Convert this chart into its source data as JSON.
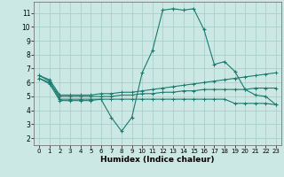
{
  "xlabel": "Humidex (Indice chaleur)",
  "bg_color": "#cce8e4",
  "grid_color": "#aacfcb",
  "line_color": "#1a7a6e",
  "xlim": [
    -0.5,
    23.5
  ],
  "ylim": [
    1.5,
    11.8
  ],
  "xticks": [
    0,
    1,
    2,
    3,
    4,
    5,
    6,
    7,
    8,
    9,
    10,
    11,
    12,
    13,
    14,
    15,
    16,
    17,
    18,
    19,
    20,
    21,
    22,
    23
  ],
  "yticks": [
    2,
    3,
    4,
    5,
    6,
    7,
    8,
    9,
    10,
    11
  ],
  "series1_x": [
    0,
    1,
    2,
    3,
    4,
    5,
    6,
    7,
    8,
    9,
    10,
    11,
    12,
    13,
    14,
    15,
    16,
    17,
    18,
    19,
    20,
    21,
    22,
    23
  ],
  "series1_y": [
    6.5,
    6.1,
    4.8,
    4.8,
    4.8,
    4.8,
    4.8,
    3.5,
    2.5,
    3.5,
    6.7,
    8.3,
    11.2,
    11.3,
    11.2,
    11.3,
    9.8,
    7.3,
    7.5,
    6.8,
    5.5,
    5.1,
    5.0,
    4.4
  ],
  "series2_x": [
    0,
    1,
    2,
    3,
    4,
    5,
    6,
    7,
    8,
    9,
    10,
    11,
    12,
    13,
    14,
    15,
    16,
    17,
    18,
    19,
    20,
    21,
    22,
    23
  ],
  "series2_y": [
    6.5,
    6.2,
    5.1,
    5.1,
    5.1,
    5.1,
    5.2,
    5.2,
    5.3,
    5.3,
    5.4,
    5.5,
    5.6,
    5.7,
    5.8,
    5.9,
    6.0,
    6.1,
    6.2,
    6.3,
    6.4,
    6.5,
    6.6,
    6.7
  ],
  "series3_x": [
    0,
    1,
    2,
    3,
    4,
    5,
    6,
    7,
    8,
    9,
    10,
    11,
    12,
    13,
    14,
    15,
    16,
    17,
    18,
    19,
    20,
    21,
    22,
    23
  ],
  "series3_y": [
    6.3,
    6.0,
    5.0,
    5.0,
    5.0,
    5.0,
    5.0,
    5.0,
    5.1,
    5.1,
    5.2,
    5.2,
    5.3,
    5.3,
    5.4,
    5.4,
    5.5,
    5.5,
    5.5,
    5.5,
    5.5,
    5.6,
    5.6,
    5.6
  ],
  "series4_x": [
    0,
    1,
    2,
    3,
    4,
    5,
    6,
    7,
    8,
    9,
    10,
    11,
    12,
    13,
    14,
    15,
    16,
    17,
    18,
    19,
    20,
    21,
    22,
    23
  ],
  "series4_y": [
    6.3,
    5.9,
    4.7,
    4.7,
    4.7,
    4.7,
    4.8,
    4.8,
    4.8,
    4.8,
    4.8,
    4.8,
    4.8,
    4.8,
    4.8,
    4.8,
    4.8,
    4.8,
    4.8,
    4.5,
    4.5,
    4.5,
    4.5,
    4.4
  ]
}
